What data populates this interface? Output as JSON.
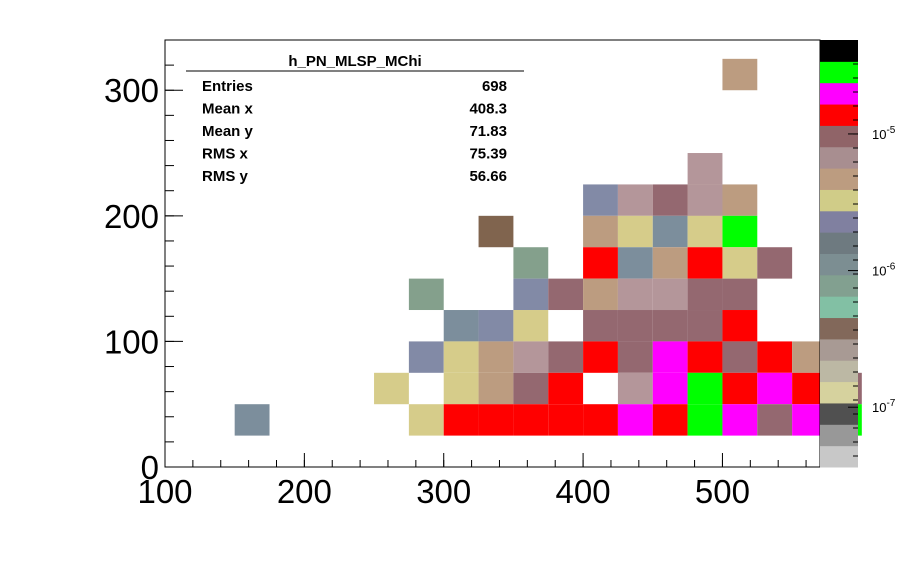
{
  "chart_data": {
    "type": "heatmap",
    "title": "",
    "xlabel": "",
    "ylabel": "",
    "xlim": [
      100,
      570
    ],
    "ylim": [
      0,
      340
    ],
    "bin_width_x": 25,
    "bin_width_y": 25,
    "x_ticks": [
      "100",
      "200",
      "300",
      "400",
      "500"
    ],
    "y_ticks": [
      "0",
      "100",
      "200",
      "300"
    ],
    "z_scale": "log",
    "z_ticks": [
      "10-5",
      "10-6",
      "10-7"
    ],
    "palette": [
      "#c8c8c8",
      "#989898",
      "#505050",
      "#d6d29e",
      "#bcb8a4",
      "#a89a94",
      "#82685a",
      "#82c0a4",
      "#82a090",
      "#7c8e92",
      "#6e7a80",
      "#8080a0",
      "#d0cc88",
      "#bc9c80",
      "#a88e90",
      "#906468",
      "#ff0000",
      "#ff00ff",
      "#00ff00",
      "#000000"
    ],
    "palette_codes": {
      "Y": "#d6cc8a",
      "T": "#bc9c80",
      "L": "#b4969a",
      "D": "#946870",
      "S": "#828aa6",
      "G": "#7c8e9c",
      "E": "#84a08c",
      "N": "#80644e",
      "R": "#ff0000",
      "M": "#ff00ff",
      "V": "#00ff00",
      "K": "#000000"
    },
    "cells": [
      {
        "x": 512.5,
        "y": 312.5,
        "c": "T"
      },
      {
        "x": 487.5,
        "y": 237.5,
        "c": "L"
      },
      {
        "x": 412.5,
        "y": 212.5,
        "c": "S"
      },
      {
        "x": 437.5,
        "y": 212.5,
        "c": "L"
      },
      {
        "x": 462.5,
        "y": 212.5,
        "c": "D"
      },
      {
        "x": 487.5,
        "y": 212.5,
        "c": "T"
      },
      {
        "x": 512.5,
        "y": 212.5,
        "c": "T"
      },
      {
        "x": 512.5,
        "y": 187.5,
        "c": "V"
      },
      {
        "x": 487.5,
        "y": 212.5,
        "c": "L"
      },
      {
        "x": 337.5,
        "y": 187.5,
        "c": "N"
      },
      {
        "x": 412.5,
        "y": 187.5,
        "c": "T"
      },
      {
        "x": 437.5,
        "y": 187.5,
        "c": "Y"
      },
      {
        "x": 462.5,
        "y": 187.5,
        "c": "G"
      },
      {
        "x": 487.5,
        "y": 187.5,
        "c": "Y"
      },
      {
        "x": 362.5,
        "y": 162.5,
        "c": "E"
      },
      {
        "x": 412.5,
        "y": 162.5,
        "c": "R"
      },
      {
        "x": 437.5,
        "y": 162.5,
        "c": "G"
      },
      {
        "x": 462.5,
        "y": 162.5,
        "c": "T"
      },
      {
        "x": 487.5,
        "y": 162.5,
        "c": "R"
      },
      {
        "x": 512.5,
        "y": 162.5,
        "c": "Y"
      },
      {
        "x": 537.5,
        "y": 162.5,
        "c": "D"
      },
      {
        "x": 287.5,
        "y": 137.5,
        "c": "E"
      },
      {
        "x": 362.5,
        "y": 137.5,
        "c": "S"
      },
      {
        "x": 387.5,
        "y": 137.5,
        "c": "D"
      },
      {
        "x": 412.5,
        "y": 137.5,
        "c": "T"
      },
      {
        "x": 437.5,
        "y": 137.5,
        "c": "L"
      },
      {
        "x": 462.5,
        "y": 137.5,
        "c": "L"
      },
      {
        "x": 487.5,
        "y": 137.5,
        "c": "D"
      },
      {
        "x": 512.5,
        "y": 137.5,
        "c": "D"
      },
      {
        "x": 312.5,
        "y": 112.5,
        "c": "G"
      },
      {
        "x": 337.5,
        "y": 112.5,
        "c": "S"
      },
      {
        "x": 362.5,
        "y": 112.5,
        "c": "Y"
      },
      {
        "x": 412.5,
        "y": 112.5,
        "c": "D"
      },
      {
        "x": 437.5,
        "y": 112.5,
        "c": "D"
      },
      {
        "x": 462.5,
        "y": 112.5,
        "c": "D"
      },
      {
        "x": 487.5,
        "y": 112.5,
        "c": "D"
      },
      {
        "x": 512.5,
        "y": 112.5,
        "c": "R"
      },
      {
        "x": 287.5,
        "y": 87.5,
        "c": "S"
      },
      {
        "x": 312.5,
        "y": 87.5,
        "c": "Y"
      },
      {
        "x": 337.5,
        "y": 87.5,
        "c": "T"
      },
      {
        "x": 362.5,
        "y": 87.5,
        "c": "L"
      },
      {
        "x": 387.5,
        "y": 87.5,
        "c": "D"
      },
      {
        "x": 412.5,
        "y": 87.5,
        "c": "R"
      },
      {
        "x": 437.5,
        "y": 87.5,
        "c": "D"
      },
      {
        "x": 462.5,
        "y": 87.5,
        "c": "M"
      },
      {
        "x": 487.5,
        "y": 87.5,
        "c": "R"
      },
      {
        "x": 512.5,
        "y": 87.5,
        "c": "D"
      },
      {
        "x": 537.5,
        "y": 87.5,
        "c": "R"
      },
      {
        "x": 562.5,
        "y": 87.5,
        "c": "T"
      },
      {
        "x": 262.5,
        "y": 62.5,
        "c": "Y"
      },
      {
        "x": 312.5,
        "y": 62.5,
        "c": "Y"
      },
      {
        "x": 337.5,
        "y": 62.5,
        "c": "T"
      },
      {
        "x": 362.5,
        "y": 62.5,
        "c": "D"
      },
      {
        "x": 387.5,
        "y": 62.5,
        "c": "R"
      },
      {
        "x": 437.5,
        "y": 62.5,
        "c": "L"
      },
      {
        "x": 462.5,
        "y": 62.5,
        "c": "M"
      },
      {
        "x": 487.5,
        "y": 62.5,
        "c": "V"
      },
      {
        "x": 512.5,
        "y": 62.5,
        "c": "R"
      },
      {
        "x": 537.5,
        "y": 62.5,
        "c": "M"
      },
      {
        "x": 562.5,
        "y": 62.5,
        "c": "R"
      },
      {
        "x": 587.5,
        "y": 62.5,
        "c": "D"
      },
      {
        "x": 162.5,
        "y": 37.5,
        "c": "G"
      },
      {
        "x": 287.5,
        "y": 37.5,
        "c": "Y"
      },
      {
        "x": 312.5,
        "y": 37.5,
        "c": "R"
      },
      {
        "x": 337.5,
        "y": 37.5,
        "c": "R"
      },
      {
        "x": 362.5,
        "y": 37.5,
        "c": "R"
      },
      {
        "x": 387.5,
        "y": 37.5,
        "c": "R"
      },
      {
        "x": 412.5,
        "y": 37.5,
        "c": "R"
      },
      {
        "x": 437.5,
        "y": 37.5,
        "c": "M"
      },
      {
        "x": 462.5,
        "y": 37.5,
        "c": "R"
      },
      {
        "x": 487.5,
        "y": 37.5,
        "c": "V"
      },
      {
        "x": 512.5,
        "y": 37.5,
        "c": "M"
      },
      {
        "x": 537.5,
        "y": 37.5,
        "c": "D"
      },
      {
        "x": 562.5,
        "y": 37.5,
        "c": "M"
      },
      {
        "x": 587.5,
        "y": 37.5,
        "c": "V"
      }
    ],
    "stats": {
      "title": "h_PN_MLSP_MChi",
      "rows": [
        {
          "label": "Entries",
          "value": "698"
        },
        {
          "label": "Mean x",
          "value": "408.3"
        },
        {
          "label": "Mean y",
          "value": "71.83"
        },
        {
          "label": "RMS x",
          "value": "75.39"
        },
        {
          "label": "RMS y",
          "value": "56.66"
        }
      ]
    }
  }
}
